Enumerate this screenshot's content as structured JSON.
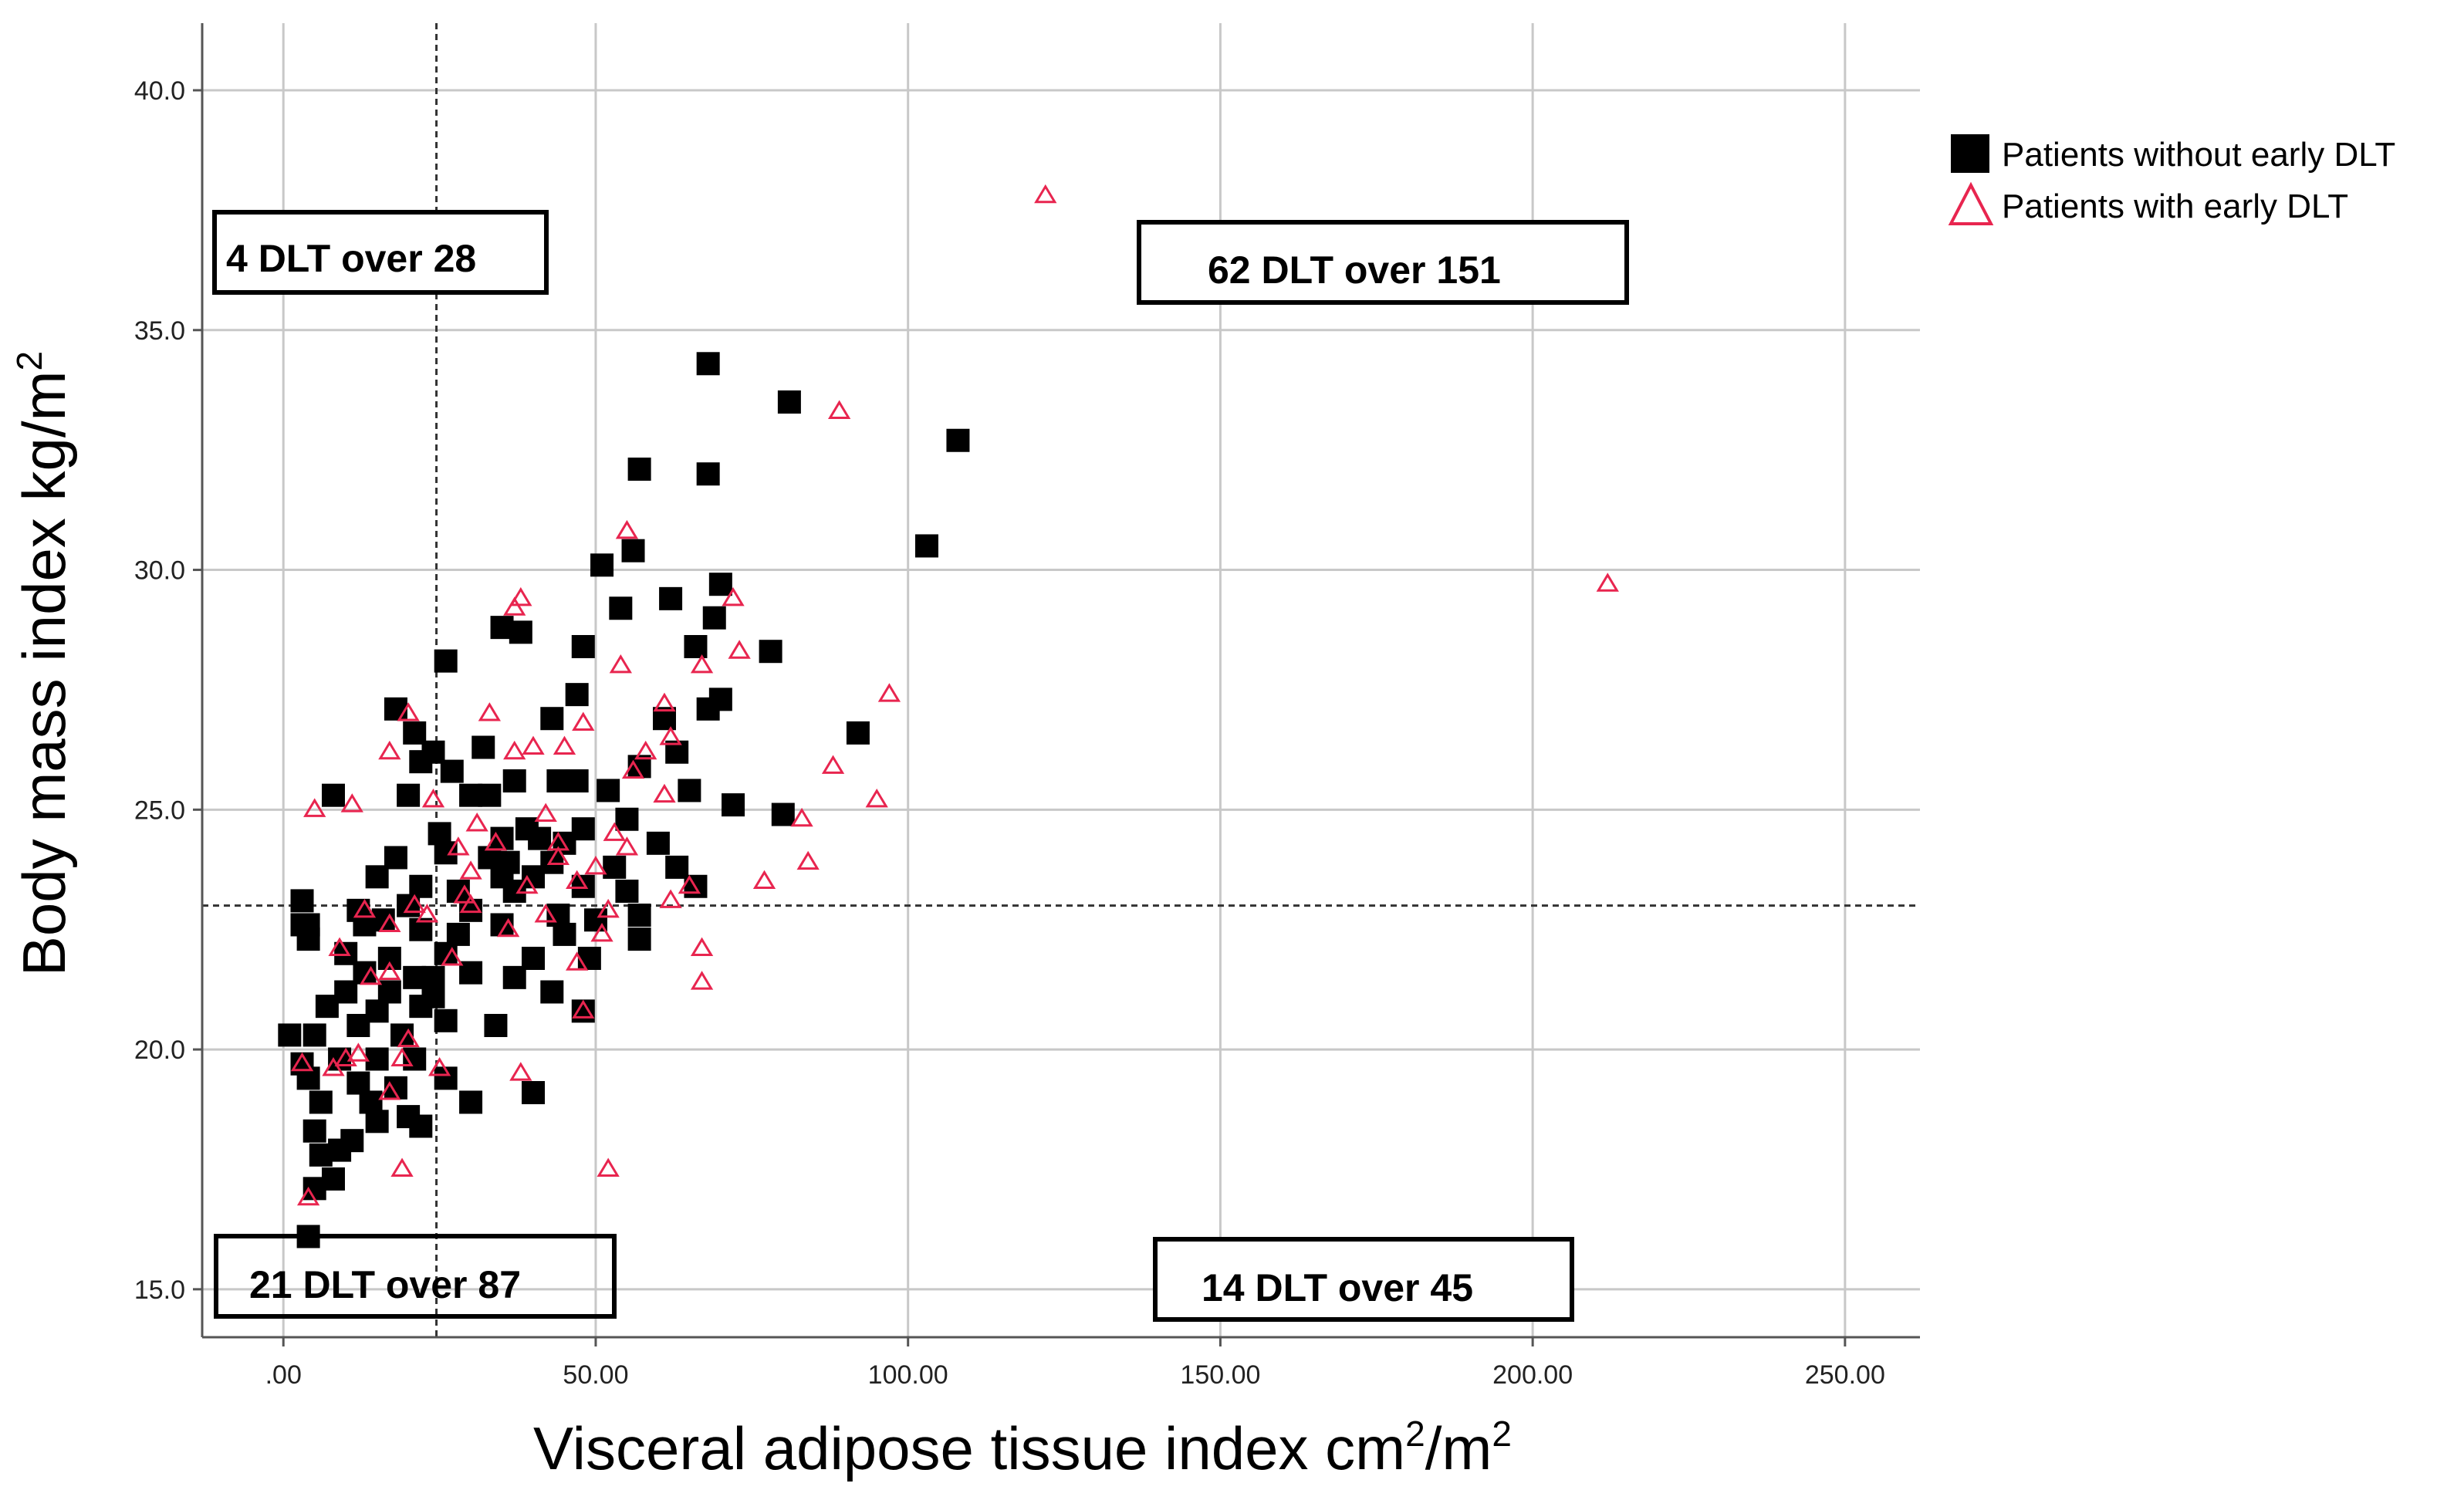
{
  "chart_data": {
    "type": "scatter",
    "title": "",
    "xlabel_main": "Visceral adipose tissue index cm",
    "xlabel_sup1": "2",
    "xlabel_mid": "/m",
    "xlabel_sup2": "2",
    "ylabel_main": "Body mass index kg/m",
    "ylabel_sup": "2",
    "xlim": [
      -13,
      262
    ],
    "ylim": [
      14.0,
      41.4
    ],
    "x_ticks": [
      0,
      50,
      100,
      150,
      200,
      250
    ],
    "x_tick_labels": [
      ".00",
      "50.00",
      "100.00",
      "150.00",
      "200.00",
      "250.00"
    ],
    "y_ticks": [
      15,
      20,
      25,
      30,
      35,
      40
    ],
    "y_tick_labels": [
      "15.0",
      "20.0",
      "25.0",
      "30.0",
      "35.0",
      "40.0"
    ],
    "grid": true,
    "reference_lines": {
      "x": 24.5,
      "y": 23.0,
      "style": "dashed"
    },
    "legend_position": "top-right",
    "colors": {
      "without": "#000000",
      "with": "#e8254f"
    },
    "annotations": [
      {
        "text": "4 DLT over 28",
        "quadrant": "top-left"
      },
      {
        "text": "62 DLT over 151",
        "quadrant": "top-right"
      },
      {
        "text": "21 DLT over 87",
        "quadrant": "bottom-left"
      },
      {
        "text": "14 DLT over 45",
        "quadrant": "bottom-right"
      }
    ],
    "series": [
      {
        "name": "Patients without early DLT",
        "marker": "square",
        "points": [
          [
            68,
            34.3
          ],
          [
            81,
            33.5
          ],
          [
            108,
            32.7
          ],
          [
            57,
            32.1
          ],
          [
            68,
            32.0
          ],
          [
            103,
            30.5
          ],
          [
            56,
            30.4
          ],
          [
            51,
            30.1
          ],
          [
            70,
            29.7
          ],
          [
            62,
            29.4
          ],
          [
            54,
            29.2
          ],
          [
            69,
            29.0
          ],
          [
            38,
            28.7
          ],
          [
            35,
            28.8
          ],
          [
            48,
            28.4
          ],
          [
            66,
            28.4
          ],
          [
            78,
            28.3
          ],
          [
            26,
            28.1
          ],
          [
            70,
            27.3
          ],
          [
            47,
            27.4
          ],
          [
            18,
            27.1
          ],
          [
            68,
            27.1
          ],
          [
            43,
            26.9
          ],
          [
            61,
            26.9
          ],
          [
            92,
            26.6
          ],
          [
            21,
            26.6
          ],
          [
            32,
            26.3
          ],
          [
            63,
            26.2
          ],
          [
            22,
            26.0
          ],
          [
            24,
            26.2
          ],
          [
            37,
            25.6
          ],
          [
            47,
            25.6
          ],
          [
            57,
            25.9
          ],
          [
            27,
            25.8
          ],
          [
            44,
            25.6
          ],
          [
            30,
            25.3
          ],
          [
            33,
            25.3
          ],
          [
            52,
            25.4
          ],
          [
            65,
            25.4
          ],
          [
            8,
            25.3
          ],
          [
            20,
            25.3
          ],
          [
            72,
            25.1
          ],
          [
            80,
            24.9
          ],
          [
            25,
            24.5
          ],
          [
            39,
            24.6
          ],
          [
            41,
            24.4
          ],
          [
            48,
            24.6
          ],
          [
            55,
            24.8
          ],
          [
            60,
            24.3
          ],
          [
            35,
            24.4
          ],
          [
            45,
            24.3
          ],
          [
            18,
            24.0
          ],
          [
            26,
            24.1
          ],
          [
            33,
            24.0
          ],
          [
            43,
            23.9
          ],
          [
            53,
            23.8
          ],
          [
            63,
            23.8
          ],
          [
            35,
            23.6
          ],
          [
            40,
            23.6
          ],
          [
            48,
            23.4
          ],
          [
            15,
            23.6
          ],
          [
            22,
            23.4
          ],
          [
            28,
            23.3
          ],
          [
            37,
            23.3
          ],
          [
            55,
            23.3
          ],
          [
            66,
            23.4
          ],
          [
            3,
            23.1
          ],
          [
            12,
            22.9
          ],
          [
            20,
            23.0
          ],
          [
            30,
            22.9
          ],
          [
            44,
            22.8
          ],
          [
            50,
            22.7
          ],
          [
            57,
            22.8
          ],
          [
            4,
            22.6
          ],
          [
            13,
            22.6
          ],
          [
            22,
            22.5
          ],
          [
            28,
            22.4
          ],
          [
            35,
            22.6
          ],
          [
            45,
            22.4
          ],
          [
            57,
            22.3
          ],
          [
            4,
            22.3
          ],
          [
            10,
            22.0
          ],
          [
            17,
            21.9
          ],
          [
            26,
            22.0
          ],
          [
            40,
            21.9
          ],
          [
            49,
            21.9
          ],
          [
            13,
            21.6
          ],
          [
            21,
            21.5
          ],
          [
            30,
            21.6
          ],
          [
            37,
            21.5
          ],
          [
            10,
            21.2
          ],
          [
            17,
            21.2
          ],
          [
            24,
            21.1
          ],
          [
            43,
            21.2
          ],
          [
            7,
            20.9
          ],
          [
            15,
            20.8
          ],
          [
            22,
            20.9
          ],
          [
            34,
            20.5
          ],
          [
            48,
            20.8
          ],
          [
            1,
            20.3
          ],
          [
            5,
            20.3
          ],
          [
            12,
            20.5
          ],
          [
            19,
            20.3
          ],
          [
            26,
            20.6
          ],
          [
            3,
            19.7
          ],
          [
            9,
            19.8
          ],
          [
            15,
            19.8
          ],
          [
            21,
            19.8
          ],
          [
            4,
            19.4
          ],
          [
            12,
            19.3
          ],
          [
            18,
            19.2
          ],
          [
            26,
            19.4
          ],
          [
            6,
            18.9
          ],
          [
            14,
            18.9
          ],
          [
            20,
            18.6
          ],
          [
            30,
            18.9
          ],
          [
            40,
            19.1
          ],
          [
            5,
            18.3
          ],
          [
            15,
            18.5
          ],
          [
            22,
            18.4
          ],
          [
            9,
            17.9
          ],
          [
            6,
            17.8
          ],
          [
            11,
            18.1
          ],
          [
            8,
            17.3
          ],
          [
            5,
            17.1
          ],
          [
            4,
            16.1
          ],
          [
            3,
            22.6
          ],
          [
            16,
            22.7
          ],
          [
            24,
            21.5
          ],
          [
            36,
            23.9
          ]
        ]
      },
      {
        "name": "Patients with early DLT",
        "marker": "triangle",
        "points": [
          [
            122,
            37.8
          ],
          [
            89,
            33.3
          ],
          [
            212,
            29.7
          ],
          [
            55,
            30.8
          ],
          [
            38,
            29.4
          ],
          [
            37,
            29.2
          ],
          [
            72,
            29.4
          ],
          [
            73,
            28.3
          ],
          [
            54,
            28.0
          ],
          [
            67,
            28.0
          ],
          [
            97,
            27.4
          ],
          [
            61,
            27.2
          ],
          [
            20,
            27.0
          ],
          [
            33,
            27.0
          ],
          [
            62,
            26.5
          ],
          [
            48,
            26.8
          ],
          [
            17,
            26.2
          ],
          [
            37,
            26.2
          ],
          [
            40,
            26.3
          ],
          [
            45,
            26.3
          ],
          [
            58,
            26.2
          ],
          [
            88,
            25.9
          ],
          [
            56,
            25.8
          ],
          [
            5,
            25.0
          ],
          [
            11,
            25.1
          ],
          [
            24,
            25.2
          ],
          [
            61,
            25.3
          ],
          [
            95,
            25.2
          ],
          [
            31,
            24.7
          ],
          [
            42,
            24.9
          ],
          [
            83,
            24.8
          ],
          [
            28,
            24.2
          ],
          [
            34,
            24.3
          ],
          [
            53,
            24.5
          ],
          [
            55,
            24.2
          ],
          [
            44,
            24.0
          ],
          [
            50,
            23.8
          ],
          [
            84,
            23.9
          ],
          [
            30,
            23.7
          ],
          [
            39,
            23.4
          ],
          [
            47,
            23.5
          ],
          [
            77,
            23.5
          ],
          [
            65,
            23.4
          ],
          [
            29,
            23.2
          ],
          [
            21,
            23.0
          ],
          [
            62,
            23.1
          ],
          [
            13,
            22.9
          ],
          [
            23,
            22.8
          ],
          [
            42,
            22.8
          ],
          [
            52,
            22.9
          ],
          [
            17,
            22.6
          ],
          [
            36,
            22.5
          ],
          [
            51,
            22.4
          ],
          [
            9,
            22.1
          ],
          [
            67,
            22.1
          ],
          [
            27,
            21.9
          ],
          [
            47,
            21.8
          ],
          [
            17,
            21.6
          ],
          [
            14,
            21.5
          ],
          [
            67,
            21.4
          ],
          [
            48,
            20.8
          ],
          [
            20,
            20.2
          ],
          [
            10,
            19.8
          ],
          [
            19,
            19.8
          ],
          [
            3,
            19.7
          ],
          [
            8,
            19.6
          ],
          [
            12,
            19.9
          ],
          [
            25,
            19.6
          ],
          [
            38,
            19.5
          ],
          [
            17,
            19.1
          ],
          [
            19,
            17.5
          ],
          [
            52,
            17.5
          ],
          [
            4,
            16.9
          ],
          [
            30,
            23.0
          ],
          [
            44,
            24.3
          ]
        ]
      }
    ]
  },
  "legend": {
    "items": [
      {
        "label": "Patients without early DLT",
        "icon": "filled-square-icon"
      },
      {
        "label": "Patients with early DLT",
        "icon": "triangle-outline-icon"
      }
    ]
  }
}
